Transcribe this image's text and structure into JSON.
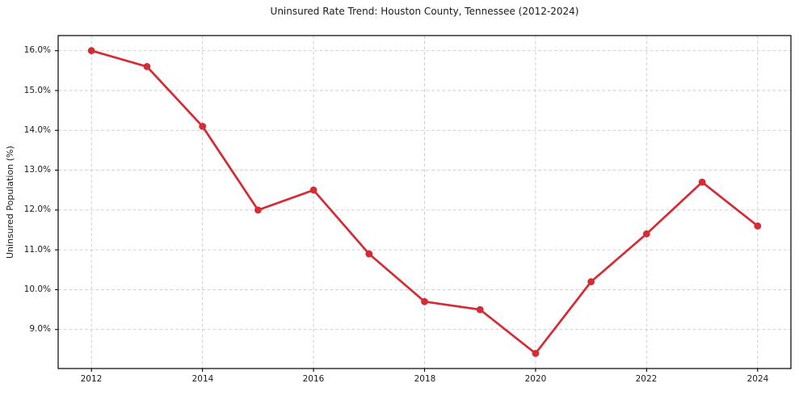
{
  "figure": {
    "background": "#ffffff"
  },
  "chart_data": {
    "type": "line",
    "title": "Uninsured Rate Trend: Houston County, Tennessee (2012-2024)",
    "xlabel": "",
    "ylabel": "Uninsured Population (%)",
    "x": [
      2012,
      2013,
      2014,
      2015,
      2016,
      2017,
      2018,
      2019,
      2020,
      2021,
      2022,
      2023,
      2024
    ],
    "values": [
      16.0,
      15.6,
      14.1,
      12.0,
      12.5,
      10.9,
      9.7,
      9.5,
      8.4,
      10.2,
      11.4,
      12.7,
      11.6
    ],
    "x_ticks": [
      {
        "value": 2012,
        "label": "2012"
      },
      {
        "value": 2014,
        "label": "2014"
      },
      {
        "value": 2016,
        "label": "2016"
      },
      {
        "value": 2018,
        "label": "2018"
      },
      {
        "value": 2020,
        "label": "2020"
      },
      {
        "value": 2022,
        "label": "2022"
      },
      {
        "value": 2024,
        "label": "2024"
      }
    ],
    "y_ticks": [
      {
        "value": 9.0,
        "label": "9.0%"
      },
      {
        "value": 10.0,
        "label": "10.0%"
      },
      {
        "value": 11.0,
        "label": "11.0%"
      },
      {
        "value": 12.0,
        "label": "12.0%"
      },
      {
        "value": 13.0,
        "label": "13.0%"
      },
      {
        "value": 14.0,
        "label": "14.0%"
      },
      {
        "value": 15.0,
        "label": "15.0%"
      },
      {
        "value": 16.0,
        "label": "16.0%"
      }
    ],
    "xlim": [
      2011.4,
      2024.6
    ],
    "ylim": [
      8.02,
      16.38
    ],
    "grid": true,
    "grid_style": "dashed",
    "legend_position": "none",
    "line_color": "#d62b35",
    "marker": "circle",
    "grid_color": "#cccccc",
    "axis_color": "#000000",
    "text_color": "#1a1a1a"
  }
}
